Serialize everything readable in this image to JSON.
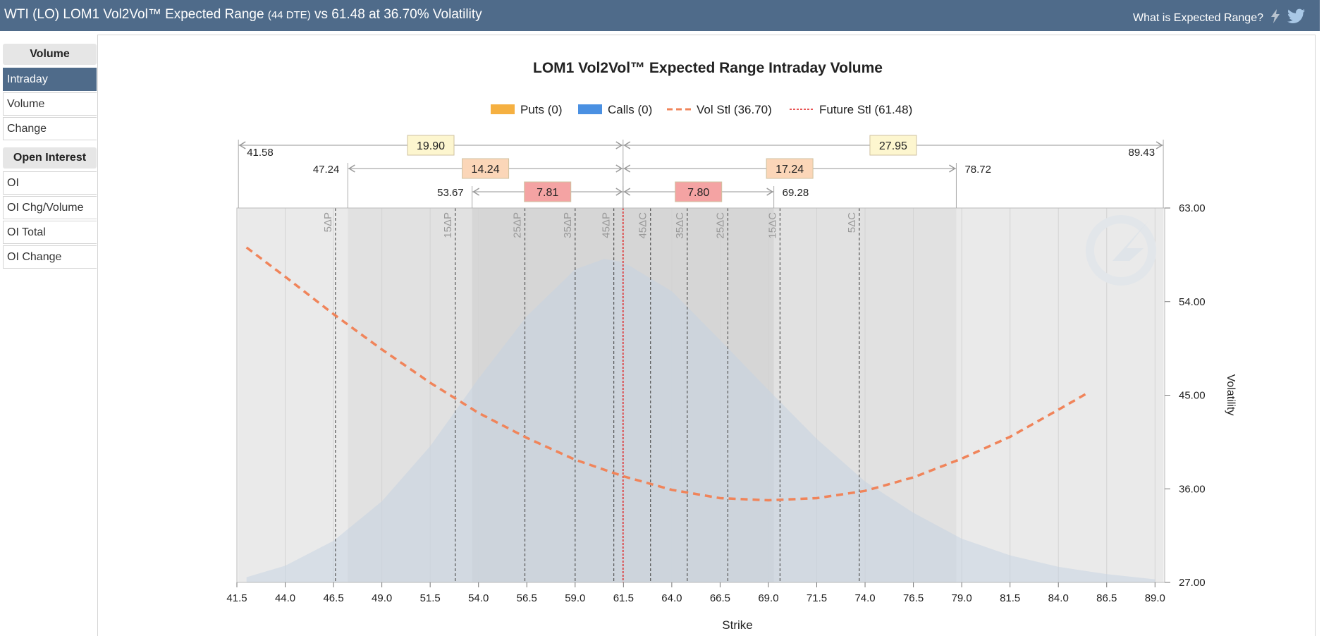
{
  "header": {
    "title_main": "WTI (LO) LOM1 Vol2Vol™ Expected Range",
    "title_dte": "(44 DTE)",
    "title_tail": "vs 61.48 at 36.70% Volatility",
    "help_link": "What is Expected Range?",
    "icons": [
      "lightning-icon",
      "twitter-icon"
    ]
  },
  "sidebar": {
    "volume_heading": "Volume",
    "volume_items": [
      "Intraday",
      "Volume",
      "Change"
    ],
    "active_item": "Intraday",
    "oi_heading": "Open Interest",
    "oi_items": [
      "OI",
      "OI Chg/Volume",
      "OI Total",
      "OI Change"
    ]
  },
  "chart_data": {
    "type": "line",
    "title": "LOM1 Vol2Vol™ Expected Range Intraday Volume",
    "xlabel": "Strike",
    "ylabel": "Volatility",
    "xlim": [
      41.5,
      89.5
    ],
    "ylim": [
      27,
      63
    ],
    "x_ticks": [
      "41.5",
      "44.0",
      "46.5",
      "49.0",
      "51.5",
      "54.0",
      "56.5",
      "59.0",
      "61.5",
      "64.0",
      "66.5",
      "69.0",
      "71.5",
      "74.0",
      "76.5",
      "79.0",
      "81.5",
      "84.0",
      "86.5",
      "89.0"
    ],
    "y_ticks": [
      "63.00",
      "54.00",
      "45.00",
      "36.00",
      "27.00"
    ],
    "legend": [
      {
        "label": "Puts (0)",
        "color": "#f5b041",
        "kind": "box"
      },
      {
        "label": "Calls (0)",
        "color": "#4a90e2",
        "kind": "box"
      },
      {
        "label": "Vol Stl (36.70)",
        "color": "#f0845a",
        "kind": "dash"
      },
      {
        "label": "Future Stl (61.48)",
        "color": "#e02020",
        "kind": "dot"
      }
    ],
    "future_settle": 61.48,
    "vol_smile": {
      "name": "Vol Stl",
      "x": [
        42.0,
        44.0,
        46.5,
        49.0,
        51.5,
        54.0,
        56.5,
        59.0,
        61.5,
        64.0,
        66.5,
        69.0,
        71.5,
        74.0,
        76.5,
        79.0,
        81.5,
        84.0,
        85.5
      ],
      "y": [
        59.2,
        56.4,
        52.8,
        49.4,
        46.2,
        43.3,
        40.9,
        38.8,
        37.2,
        35.9,
        35.1,
        34.9,
        35.1,
        35.8,
        37.1,
        38.9,
        41.0,
        43.6,
        45.2
      ]
    },
    "volume_distribution": {
      "x": [
        42.0,
        44.0,
        46.5,
        49.0,
        51.5,
        54.0,
        56.5,
        59.0,
        60.5,
        61.5,
        64.0,
        66.5,
        69.0,
        71.5,
        74.0,
        76.5,
        79.0,
        81.5,
        84.0,
        86.5,
        89.0
      ],
      "y": [
        27.5,
        28.6,
        31.0,
        34.8,
        40.1,
        46.6,
        52.6,
        57.1,
        58.1,
        57.8,
        55.0,
        50.3,
        45.5,
        40.8,
        36.7,
        33.7,
        31.2,
        29.6,
        28.5,
        27.8,
        27.3
      ]
    },
    "delta_lines": [
      {
        "label": "5ΔP",
        "strike": 46.6
      },
      {
        "label": "15ΔP",
        "strike": 52.8
      },
      {
        "label": "25ΔP",
        "strike": 56.4
      },
      {
        "label": "35ΔP",
        "strike": 59.0
      },
      {
        "label": "45ΔP",
        "strike": 61.0
      },
      {
        "label": "45ΔC",
        "strike": 62.9
      },
      {
        "label": "35ΔC",
        "strike": 64.8
      },
      {
        "label": "25ΔC",
        "strike": 66.9
      },
      {
        "label": "15ΔC",
        "strike": 69.6
      },
      {
        "label": "5ΔC",
        "strike": 73.7
      }
    ],
    "ranges": [
      {
        "level": 1,
        "low": 41.58,
        "high": 89.43,
        "low_label": "41.58",
        "high_label": "89.43",
        "down": "19.90",
        "up": "27.95",
        "color": "#fdf6cf"
      },
      {
        "level": 2,
        "low": 47.24,
        "high": 78.72,
        "low_label": "47.24",
        "high_label": "78.72",
        "down": "14.24",
        "up": "17.24",
        "color": "#fbd6b8"
      },
      {
        "level": 3,
        "low": 53.67,
        "high": 69.28,
        "low_label": "53.67",
        "high_label": "69.28",
        "down": "7.81",
        "up": "7.80",
        "color": "#f4a3a3"
      }
    ]
  }
}
